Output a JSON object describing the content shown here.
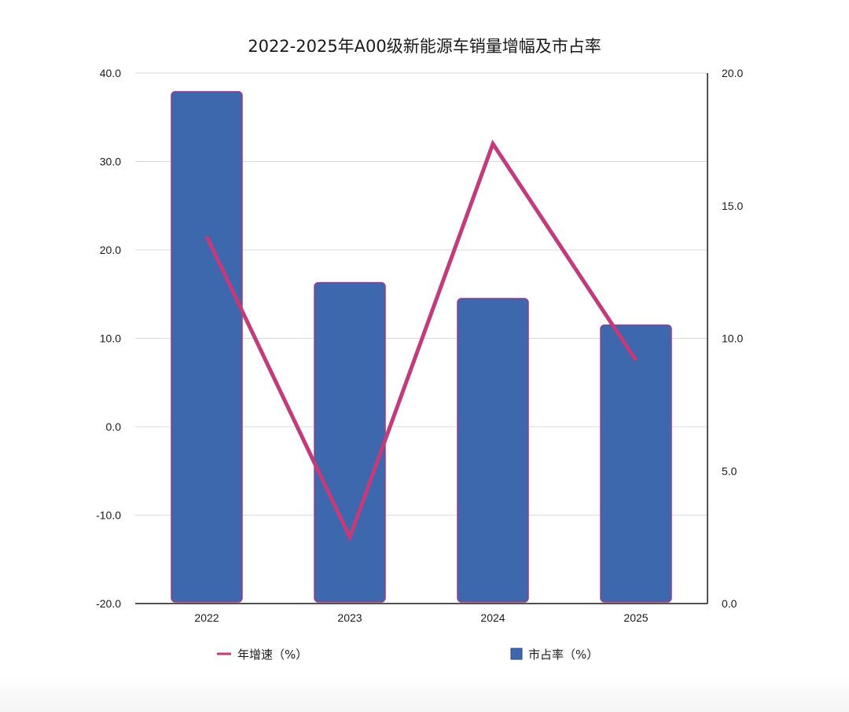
{
  "chart_data": {
    "type": "bar",
    "title": "2022-2025年A00级新能源车销量增幅及市占率",
    "categories": [
      "2022",
      "2023",
      "2024",
      "2025"
    ],
    "series": [
      {
        "name": "市占率（%）",
        "type": "bar",
        "axis": "right",
        "color": "#3d68ad",
        "border_color": "#9b3b8c",
        "values": [
          19.3,
          12.1,
          11.5,
          10.5
        ]
      },
      {
        "name": "年增速（%）",
        "type": "line",
        "axis": "left",
        "color": "#c23b7b",
        "values": [
          21.5,
          -12.5,
          32.0,
          7.5
        ]
      }
    ],
    "y_left": {
      "lim": [
        -20,
        40
      ],
      "ticks": [
        -20,
        -10,
        0,
        10,
        20,
        30,
        40
      ],
      "tick_labels": [
        "-20.0",
        "-10.0",
        "0.0",
        "10.0",
        "20.0",
        "30.0",
        "40.0"
      ]
    },
    "y_right": {
      "lim": [
        0,
        20
      ],
      "ticks": [
        0,
        5,
        10,
        15,
        20
      ],
      "tick_labels": [
        "0.0",
        "5.0",
        "10.0",
        "15.0",
        "20.0"
      ]
    },
    "grid": true,
    "legend_position": "bottom"
  }
}
